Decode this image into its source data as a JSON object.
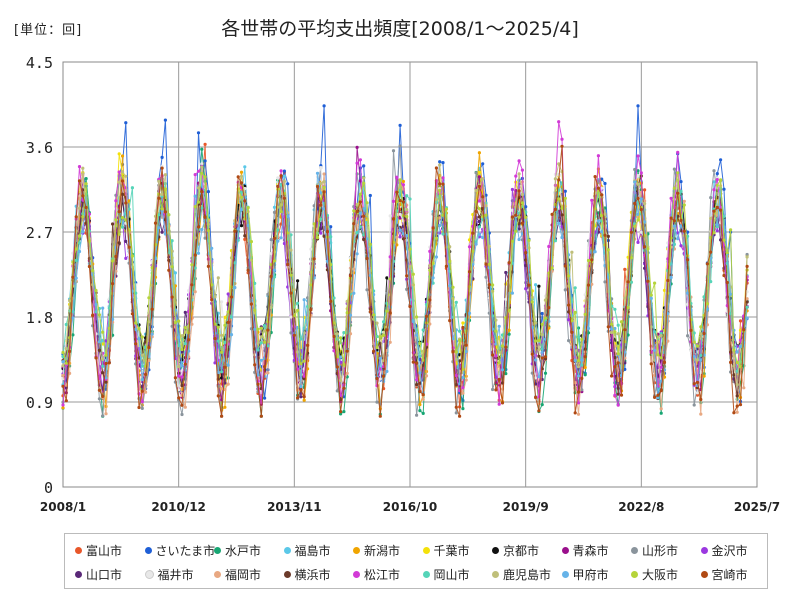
{
  "unit_label": "[単位：回]",
  "chart_data": {
    "type": "line",
    "title": "各世帯の平均支出頻度[2008/1～2025/4]",
    "x_start": "2008/1",
    "x_end": "2025/4",
    "x_ticks": [
      "2008/1",
      "2010/12",
      "2013/11",
      "2016/10",
      "2019/9",
      "2022/8",
      "2025/7"
    ],
    "ylim": [
      0,
      4.5
    ],
    "y_ticks": [
      "0",
      "0.9",
      "1.8",
      "2.7",
      "3.6",
      "4.5"
    ],
    "grid": true,
    "legend_position": "bottom",
    "series_note": "月次の推移（各系列は概ね年周期で約1.0～3.6回の間を変動）",
    "series": [
      {
        "name": "富山市",
        "color": "#e8572a"
      },
      {
        "name": "さいたま市",
        "color": "#1f5fd6"
      },
      {
        "name": "水戸市",
        "color": "#17a673"
      },
      {
        "name": "福島市",
        "color": "#5bc8e8"
      },
      {
        "name": "新潟市",
        "color": "#f0a500"
      },
      {
        "name": "千葉市",
        "color": "#f4e10a"
      },
      {
        "name": "京都市",
        "color": "#111111"
      },
      {
        "name": "青森市",
        "color": "#9a0f8c"
      },
      {
        "name": "山形市",
        "color": "#8a949c"
      },
      {
        "name": "金沢市",
        "color": "#9b38e0"
      },
      {
        "name": "山口市",
        "color": "#5a2878"
      },
      {
        "name": "福井市",
        "color": "#e8e8e8"
      },
      {
        "name": "福岡市",
        "color": "#e8a882"
      },
      {
        "name": "横浜市",
        "color": "#6b3a2a"
      },
      {
        "name": "松江市",
        "color": "#d23ad6"
      },
      {
        "name": "岡山市",
        "color": "#55d4b8"
      },
      {
        "name": "鹿児島市",
        "color": "#bfbf7a"
      },
      {
        "name": "甲府市",
        "color": "#66b3e8"
      },
      {
        "name": "大阪市",
        "color": "#b5d43a"
      },
      {
        "name": "宮崎市",
        "color": "#b04a14"
      }
    ]
  }
}
